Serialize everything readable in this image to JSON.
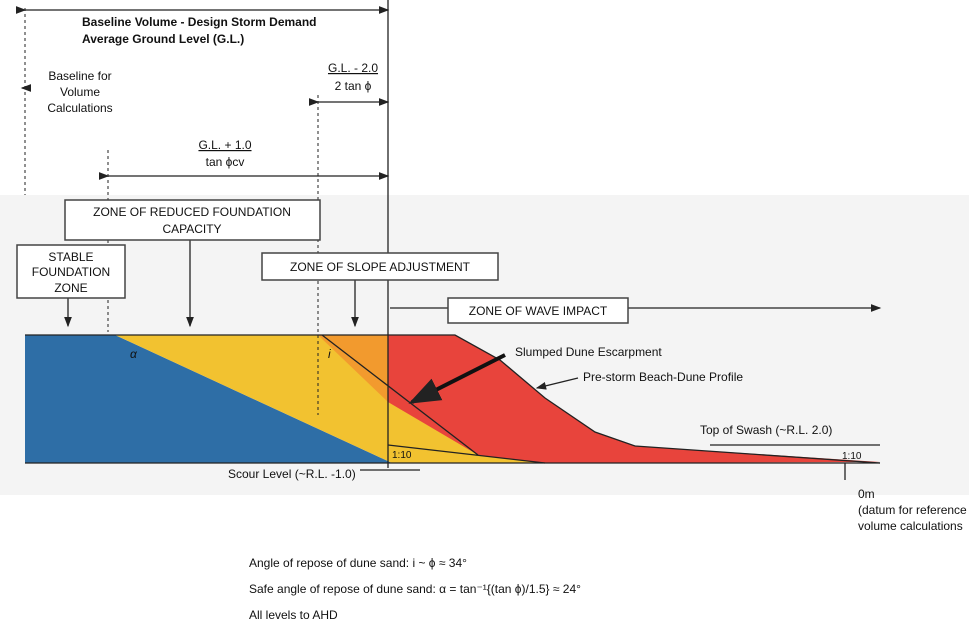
{
  "header": {
    "lines": [
      "Baseline Volume - Design Storm Demand",
      "Average Ground Level (G.L.)"
    ]
  },
  "baseline_label": [
    "Baseline for",
    "Volume",
    "Calculations"
  ],
  "slope_width": {
    "numerator": "G.L. - 2.0",
    "denominator": "2 tan ϕ"
  },
  "reduced_width": {
    "numerator": "G.L. + 1.0",
    "denominator": "tan ϕcv"
  },
  "zones": {
    "reduced": [
      "ZONE OF REDUCED FOUNDATION",
      "CAPACITY"
    ],
    "stable": [
      "STABLE",
      "FOUNDATION",
      "ZONE"
    ],
    "slope": "ZONE OF SLOPE ADJUSTMENT",
    "wave": "ZONE OF WAVE IMPACT"
  },
  "annotations": {
    "escarpment": "Slumped Dune Escarpment",
    "profile": "Pre-storm Beach-Dune Profile",
    "swash": "Top of Swash (~R.L. 2.0)",
    "slope_bottom": "1:10",
    "slope_right": "1:10",
    "alpha": "α",
    "i": "i",
    "scour": "Scour Level (~R.L. -1.0)",
    "datum": [
      "0m",
      "(datum for reference",
      "volume calculations"
    ]
  },
  "notes": [
    "Angle of repose of dune sand:  i ~ ϕ ≈ 34°",
    "Safe angle of repose of dune sand:  α = tan⁻¹{(tan ϕ)/1.5} ≈ 24°",
    "All levels to AHD"
  ]
}
